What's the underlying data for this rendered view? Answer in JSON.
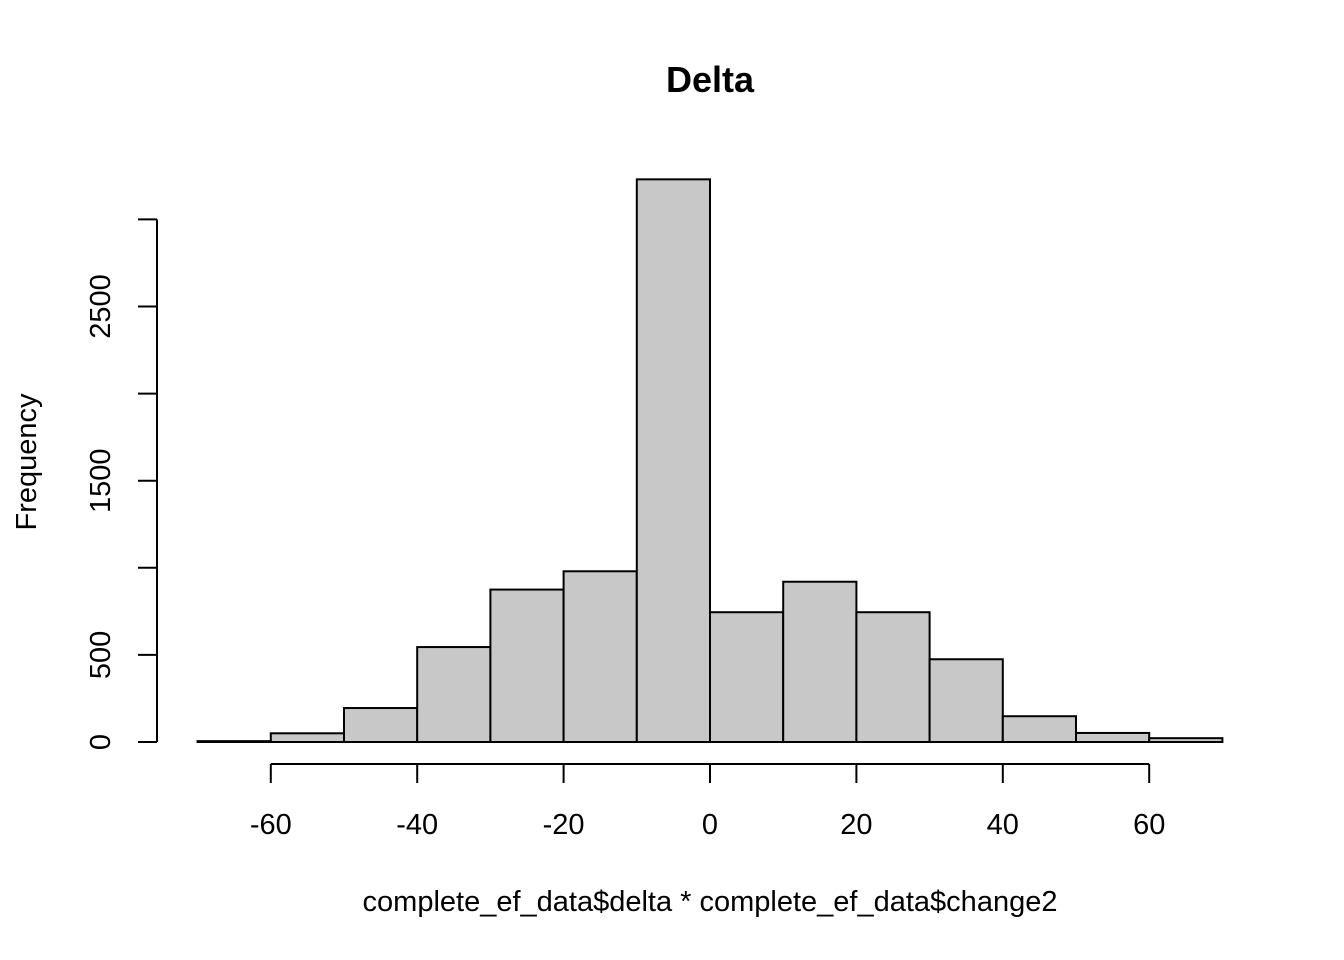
{
  "chart_data": {
    "type": "bar",
    "title": "Delta",
    "xlabel": "complete_ef_data$delta * complete_ef_data$change2",
    "ylabel": "Frequency",
    "bin_edges": [
      -70,
      -60,
      -50,
      -40,
      -30,
      -20,
      -10,
      0,
      10,
      20,
      30,
      40,
      50,
      60,
      70
    ],
    "values": [
      5,
      50,
      195,
      545,
      875,
      980,
      3230,
      745,
      920,
      745,
      475,
      148,
      52,
      22
    ],
    "xlim": [
      -70,
      70
    ],
    "ylim": [
      0,
      3230
    ],
    "x_ticks": [
      -60,
      -40,
      -20,
      0,
      20,
      40,
      60
    ],
    "x_tick_labels": [
      "-60",
      "-40",
      "-20",
      "0",
      "20",
      "40",
      "60"
    ],
    "y_ticks": [
      0,
      500,
      1000,
      1500,
      2000,
      2500,
      3000
    ],
    "y_tick_labels": [
      "0",
      "500",
      "",
      "1500",
      "",
      "2500",
      ""
    ],
    "grid": false,
    "colors": {
      "bar_fill": "#c8c8c8",
      "bar_stroke": "#000000"
    }
  }
}
